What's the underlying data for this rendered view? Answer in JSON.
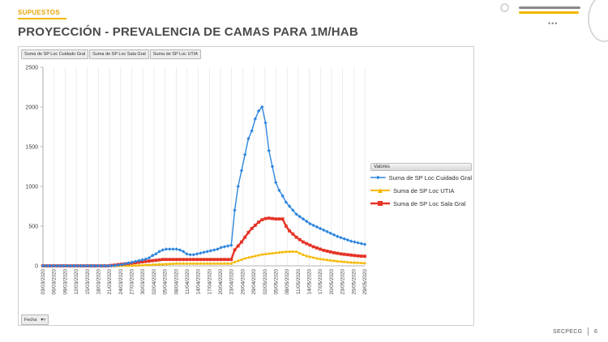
{
  "header": {
    "section_tag": "SUPUESTOS",
    "title": "PROYECCIÓN - PREVALENCIA DE CAMAS PARA 1M/HAB"
  },
  "pivot": {
    "field_buttons": [
      "Suma de  SP Loc Cuidado Gral",
      "Suma de SP Loc Sala Gral",
      "Suma de SP Loc UTIA"
    ],
    "axis_button": "Fecha"
  },
  "footer": {
    "brand": "SECPECG",
    "page_number": "6"
  },
  "decor_icons": [
    "circle-ring-icon",
    "slide-bars-icon",
    "ellipsis-icon",
    "corner-arc-icon",
    "filter-icon"
  ],
  "chart_data": {
    "type": "line",
    "legend_title": "Valores",
    "legend_position": "right",
    "grid": "vertical",
    "ylim": [
      0,
      2500
    ],
    "yticks": [
      0,
      500,
      1000,
      1500,
      2000,
      2500
    ],
    "xlabels": [
      "03/03/2020",
      "06/03/2020",
      "09/03/2020",
      "12/03/2020",
      "15/03/2020",
      "18/03/2020",
      "21/03/2020",
      "24/03/2020",
      "27/03/2020",
      "30/03/2020",
      "02/04/2020",
      "05/04/2020",
      "08/04/2020",
      "11/04/2020",
      "14/04/2020",
      "17/04/2020",
      "20/04/2020",
      "23/04/2020",
      "26/04/2020",
      "29/04/2020",
      "02/05/2020",
      "05/05/2020",
      "08/05/2020",
      "11/05/2020",
      "14/05/2020",
      "17/05/2020",
      "20/05/2020",
      "23/05/2020",
      "26/05/2020",
      "29/05/2020"
    ],
    "series": [
      {
        "name": "Suma de  SP Loc Cuidado Gral",
        "color": "#2e86de",
        "marker": "diamond",
        "values": [
          0,
          0,
          0,
          0,
          0,
          0,
          0,
          0,
          0,
          0,
          0,
          0,
          0,
          0,
          0,
          0,
          0,
          0,
          0,
          0,
          0,
          5,
          10,
          15,
          25,
          35,
          45,
          55,
          65,
          75,
          85,
          100,
          130,
          150,
          180,
          200,
          210,
          210,
          210,
          210,
          200,
          180,
          150,
          140,
          140,
          150,
          160,
          170,
          180,
          190,
          200,
          210,
          230,
          240,
          250,
          260,
          700,
          1000,
          1200,
          1400,
          1600,
          1700,
          1850,
          1950,
          2000,
          1800,
          1450,
          1250,
          1050,
          950,
          880,
          800,
          750,
          700,
          650,
          620,
          590,
          560,
          530,
          510,
          490,
          470,
          450,
          430,
          410,
          390,
          370,
          355,
          340,
          325,
          310,
          300,
          290,
          280,
          270
        ]
      },
      {
        "name": "Suma de SP Loc UTIA",
        "color": "#f5b800",
        "marker": "triangle",
        "values": [
          0,
          0,
          0,
          0,
          0,
          0,
          0,
          0,
          0,
          0,
          0,
          0,
          0,
          0,
          0,
          0,
          0,
          0,
          0,
          0,
          0,
          0,
          1,
          2,
          3,
          4,
          5,
          6,
          8,
          10,
          12,
          14,
          16,
          18,
          20,
          22,
          24,
          26,
          28,
          30,
          30,
          30,
          30,
          30,
          30,
          30,
          30,
          30,
          30,
          30,
          30,
          30,
          30,
          30,
          30,
          30,
          50,
          65,
          80,
          95,
          105,
          115,
          125,
          135,
          145,
          150,
          155,
          160,
          165,
          170,
          175,
          178,
          180,
          182,
          180,
          160,
          140,
          125,
          115,
          105,
          95,
          88,
          82,
          76,
          70,
          65,
          60,
          56,
          52,
          48,
          45,
          42,
          40,
          38,
          36
        ]
      },
      {
        "name": "Suma de SP Loc Sala Gral",
        "color": "#e53325",
        "marker": "square",
        "values": [
          0,
          0,
          0,
          0,
          0,
          0,
          0,
          0,
          0,
          0,
          0,
          0,
          0,
          0,
          0,
          0,
          0,
          0,
          0,
          0,
          5,
          10,
          15,
          20,
          25,
          30,
          35,
          40,
          45,
          50,
          55,
          60,
          65,
          70,
          75,
          80,
          80,
          80,
          80,
          80,
          80,
          80,
          80,
          80,
          80,
          80,
          80,
          80,
          80,
          80,
          80,
          80,
          80,
          80,
          80,
          80,
          200,
          250,
          300,
          360,
          420,
          470,
          510,
          550,
          580,
          595,
          600,
          595,
          590,
          590,
          590,
          500,
          440,
          400,
          360,
          330,
          300,
          280,
          260,
          240,
          225,
          210,
          195,
          185,
          175,
          165,
          158,
          150,
          145,
          140,
          135,
          130,
          125,
          122,
          120
        ]
      }
    ]
  }
}
